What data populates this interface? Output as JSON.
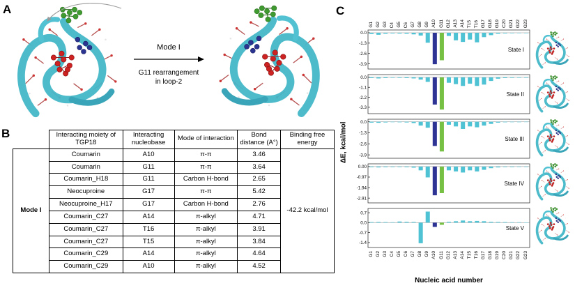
{
  "panel_a": {
    "label": "A",
    "arrow_label": "Mode I",
    "caption_line1": "G11 rearrangement",
    "caption_line2": "in loop-2"
  },
  "panel_b": {
    "label": "B",
    "table": {
      "headers": [
        "Interacting moiety of TGP18",
        "Interacting nucleobase",
        "Mode of interaction",
        "Bond distance (A°)",
        "Binding free energy"
      ],
      "mode_label": "Mode I",
      "rows": [
        [
          "Coumarin",
          "A10",
          "π-π",
          "3.46"
        ],
        [
          "Coumarin",
          "G11",
          "π-π",
          "3.64"
        ],
        [
          "Coumarin_H18",
          "G11",
          "Carbon H-bond",
          "2.65"
        ],
        [
          "Neocuproine",
          "G17",
          "π-π",
          "5.42"
        ],
        [
          "Neocuproine_H17",
          "G17",
          "Carbon H-bond",
          "2.76"
        ],
        [
          "Coumarin_C27",
          "A14",
          "π-alkyl",
          "4.71"
        ],
        [
          "Coumarin_C27",
          "T16",
          "π-alkyl",
          "3.91"
        ],
        [
          "Coumarin_C27",
          "T15",
          "π-alkyl",
          "3.84"
        ],
        [
          "Coumarin_C29",
          "A14",
          "π-alkyl",
          "4.64"
        ],
        [
          "Coumarin_C29",
          "A10",
          "π-alkyl",
          "4.52"
        ]
      ],
      "binding_free_energy": "-42.2 kcal/mol"
    }
  },
  "panel_c": {
    "label": "C"
  },
  "chart_data": {
    "type": "bar",
    "categories": [
      "G1",
      "G2",
      "G3",
      "C4",
      "G5",
      "C6",
      "G7",
      "G8",
      "G9",
      "A10",
      "G11",
      "G12",
      "A13",
      "A14",
      "T15",
      "T16",
      "G17",
      "G18",
      "G19",
      "C20",
      "G21",
      "G22",
      "G23"
    ],
    "xlabel": "Nucleic acid number",
    "ylabel": "ΔE, kcal/mol",
    "grid": false,
    "legend": "none",
    "colors": {
      "default": "#4fc3d4",
      "A10": "#2d3494",
      "G11": "#76c043"
    },
    "states": [
      {
        "name": "State I",
        "ticks": [
          "0.0",
          "-1.3",
          "-2.6",
          "-3.9"
        ],
        "ymax": 0.35,
        "ymin": -4.55,
        "values": [
          -0.15,
          -0.25,
          -0.12,
          -0.08,
          -0.1,
          -0.12,
          -0.2,
          -0.35,
          -1.25,
          -3.95,
          -3.45,
          -0.4,
          -0.95,
          -1.15,
          -0.85,
          -1.2,
          -0.55,
          -0.3,
          -0.12,
          -0.08,
          -0.06,
          -0.05,
          -0.05
        ]
      },
      {
        "name": "State II",
        "ticks": [
          "0.0",
          "-1.1",
          "-2.2",
          "-3.3"
        ],
        "ymax": 0.3,
        "ymin": -4.0,
        "values": [
          -0.08,
          -0.12,
          -0.08,
          -0.05,
          -0.06,
          -0.08,
          -0.12,
          -0.25,
          -0.5,
          -3.0,
          -3.55,
          -0.6,
          -0.75,
          -0.95,
          -0.7,
          -0.95,
          -0.8,
          -0.4,
          -0.15,
          -0.08,
          -0.06,
          -0.05,
          -0.05
        ]
      },
      {
        "name": "State III",
        "ticks": [
          "0.0",
          "-1.3",
          "-2.6",
          "-3.9"
        ],
        "ymax": 0.3,
        "ymin": -4.3,
        "values": [
          -0.1,
          -0.12,
          -0.08,
          -0.05,
          -0.06,
          -0.08,
          -0.15,
          -0.45,
          -0.7,
          -2.85,
          -3.5,
          -0.35,
          -0.55,
          -0.85,
          -0.55,
          -0.65,
          -0.45,
          -0.25,
          -0.1,
          -0.06,
          -0.05,
          -0.05,
          -0.04
        ]
      },
      {
        "name": "State IV",
        "ticks": [
          "0.00",
          "-0.97",
          "-1.94",
          "-2.91"
        ],
        "ymax": 0.25,
        "ymin": -3.35,
        "values": [
          -0.06,
          -0.08,
          -0.06,
          -0.05,
          -0.05,
          -0.06,
          -0.1,
          -0.35,
          -1.0,
          -2.65,
          -2.45,
          -0.35,
          -0.45,
          -0.55,
          -0.35,
          -0.45,
          -0.3,
          -0.15,
          -0.08,
          -0.05,
          -0.05,
          -0.04,
          -0.04
        ]
      },
      {
        "name": "State V",
        "ticks": [
          "0.7",
          "0.0",
          "-0.7",
          "-1.4"
        ],
        "ymax": 1.0,
        "ymin": -1.75,
        "values": [
          0.04,
          0.05,
          0.04,
          0.03,
          0.08,
          0.06,
          0.05,
          -1.45,
          0.78,
          -0.3,
          -0.15,
          0.06,
          0.1,
          0.15,
          0.1,
          0.12,
          0.1,
          0.06,
          0.05,
          0.04,
          0.03,
          0.03,
          0.02
        ]
      }
    ]
  }
}
